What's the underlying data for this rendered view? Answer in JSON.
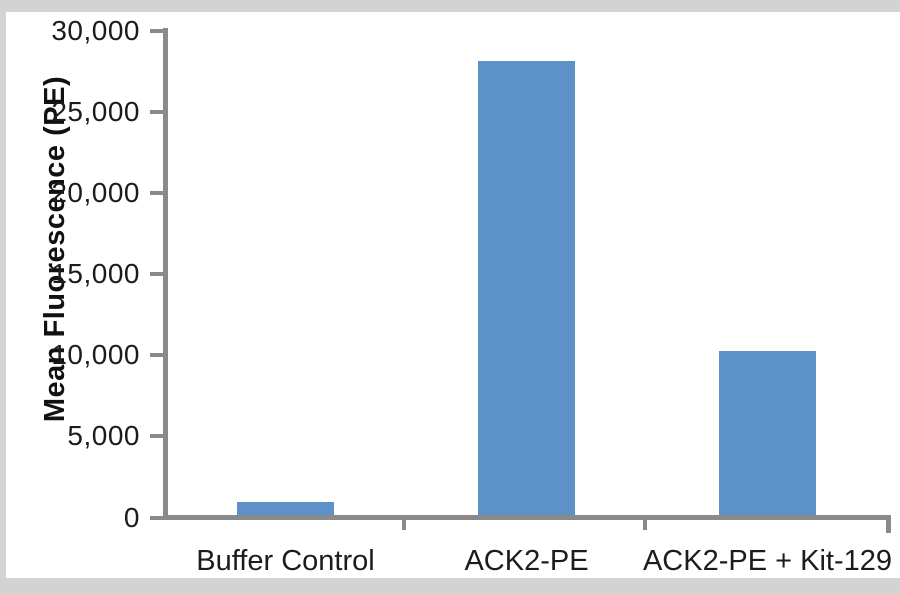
{
  "figure": {
    "frame_color": "#d3d3d3",
    "panel_color": "#ffffff"
  },
  "chart_data": {
    "type": "bar",
    "title": "",
    "xlabel": "",
    "ylabel": "Mean Fluorescence (PE)",
    "categories": [
      "Buffer Control",
      "ACK2-PE",
      "ACK2-PE + Kit-129"
    ],
    "values": [
      800,
      28300,
      10200
    ],
    "ylim": [
      0,
      30000
    ],
    "yticks": [
      0,
      5000,
      10000,
      15000,
      20000,
      25000,
      30000
    ],
    "ytick_labels": [
      "0",
      "5,000",
      "10,000",
      "15,000",
      "20,000",
      "25,000",
      "30,000"
    ],
    "grid": false,
    "legend_position": "none",
    "bar_color": "#5c92c8",
    "axis_color": "#8a8a8a",
    "label_color": "#1c1c1c"
  }
}
